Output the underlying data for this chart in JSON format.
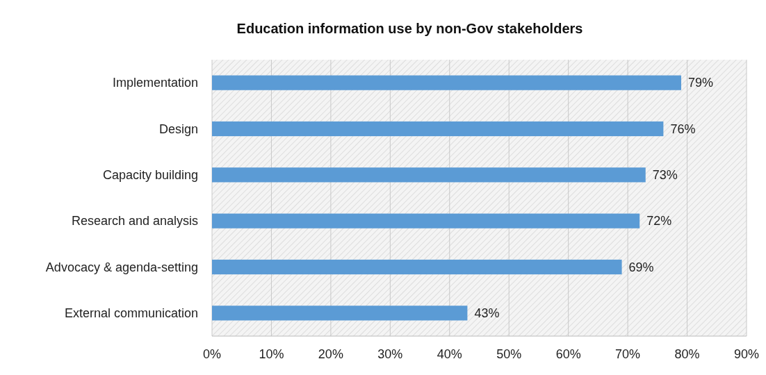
{
  "chart_data": {
    "type": "bar",
    "orientation": "horizontal",
    "title": "Education information use by non-Gov stakeholders",
    "categories": [
      "Implementation",
      "Design",
      "Capacity building",
      "Research and analysis",
      "Advocacy & agenda-setting",
      "External communication"
    ],
    "values": [
      79,
      76,
      73,
      72,
      69,
      43
    ],
    "value_labels": [
      "79%",
      "76%",
      "73%",
      "72%",
      "69%",
      "43%"
    ],
    "color": "#5b9bd5",
    "xlim": [
      0,
      90
    ],
    "xticks": [
      {
        "value": 0,
        "label": "0%"
      },
      {
        "value": 10,
        "label": "10%"
      },
      {
        "value": 20,
        "label": "20%"
      },
      {
        "value": 30,
        "label": "30%"
      },
      {
        "value": 40,
        "label": "40%"
      },
      {
        "value": 50,
        "label": "50%"
      },
      {
        "value": 60,
        "label": "60%"
      },
      {
        "value": 70,
        "label": "70%"
      },
      {
        "value": 80,
        "label": "80%"
      },
      {
        "value": 90,
        "label": "90%"
      }
    ],
    "grid": "x"
  }
}
